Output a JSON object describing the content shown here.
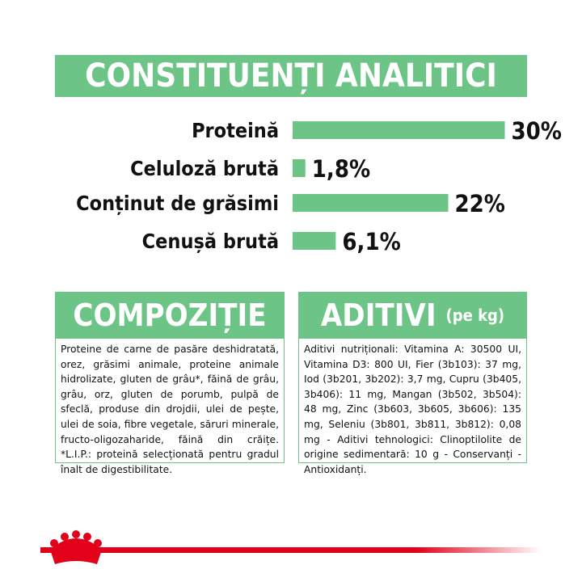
{
  "chart_data": {
    "type": "bar",
    "title": "CONSTITUENȚI ANALITICI",
    "categories": [
      "Proteină",
      "Celuloză brută",
      "Conținut de grăsimi",
      "Cenușă brută"
    ],
    "values": [
      30,
      1.8,
      22,
      6.1
    ],
    "value_labels": [
      "30%",
      "1,8%",
      "22%",
      "6,1%"
    ],
    "color": "#6cc586"
  },
  "composition": {
    "title": "COMPOZIȚIE",
    "text": "Proteine de carne de pasăre deshidratată, orez, grăsimi animale, proteine animale hidrolizate, gluten de grâu*, făină de grâu, grâu, orz, gluten de porumb, pulpă de sfeclă, produse din drojdii, ulei de pește, ulei de soia, fibre vegetale, săruri minerale, fructo-oligozaharide, făină din crăițe. *L.I.P.: proteină selecționată pentru gradul înalt de digestibilitate."
  },
  "additives": {
    "title": "ADITIVI",
    "subtitle": "(pe kg)",
    "text": "Aditivi nutriționali: Vitamina A: 30500 UI, Vitamina D3: 800 UI, Fier (3b103): 37 mg, Iod (3b201, 3b202): 3,7 mg, Cupru (3b405, 3b406): 11 mg, Mangan (3b502, 3b504): 48 mg, Zinc (3b603, 3b605, 3b606): 135 mg, Seleniu (3b801, 3b811, 3b812): 0,08 mg - Aditivi tehnologici: Clinoptilolite de origine sedimentară: 10 g - Conservanți - Antioxidanți."
  }
}
